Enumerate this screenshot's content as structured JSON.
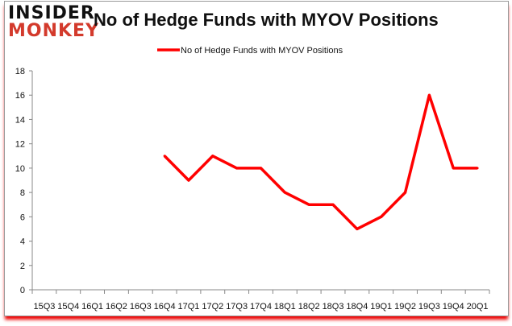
{
  "logo": {
    "line1": "INSIDER",
    "line2": "MONKEY"
  },
  "chart_data": {
    "type": "line",
    "title": "No of Hedge Funds with MYOV Positions",
    "categories": [
      "15Q3",
      "15Q4",
      "16Q1",
      "16Q2",
      "16Q3",
      "16Q4",
      "17Q1",
      "17Q2",
      "17Q3",
      "17Q4",
      "18Q1",
      "18Q2",
      "18Q3",
      "18Q4",
      "19Q1",
      "19Q2",
      "19Q3",
      "19Q4",
      "20Q1"
    ],
    "series": [
      {
        "name": "No of Hedge Funds with MYOV Positions",
        "color": "#ff0000",
        "values": [
          null,
          null,
          null,
          null,
          null,
          11,
          9,
          11,
          10,
          10,
          8,
          7,
          7,
          5,
          6,
          8,
          16,
          10,
          10
        ]
      }
    ],
    "ylim": [
      0,
      18
    ],
    "yticks": [
      0,
      2,
      4,
      6,
      8,
      10,
      12,
      14,
      16,
      18
    ],
    "grid": false,
    "legend": "top"
  }
}
